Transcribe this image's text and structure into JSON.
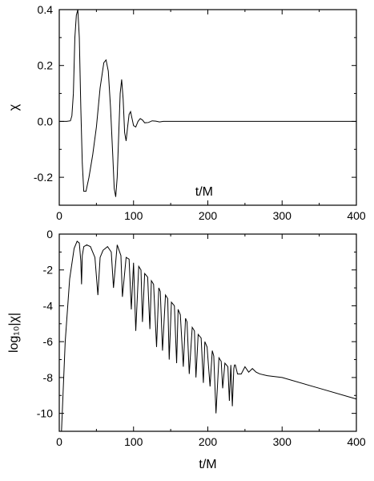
{
  "chart_data": [
    {
      "type": "line",
      "xlabel": "t/M",
      "ylabel": "χ",
      "xlim": [
        0,
        400
      ],
      "ylim": [
        -0.3,
        0.4
      ],
      "x_ticks": [
        0,
        100,
        200,
        300,
        400
      ],
      "x_tick_labels": [
        "0",
        "100",
        "200",
        "300",
        "400"
      ],
      "y_ticks": [
        -0.2,
        0.0,
        0.2,
        0.4
      ],
      "y_tick_labels": [
        "-0.2",
        "0.0",
        "0.2",
        "0.4"
      ],
      "grid": false,
      "series": [
        {
          "x": [
            0,
            10,
            15,
            17,
            19,
            21,
            23,
            25,
            27,
            29,
            31,
            33,
            36,
            40,
            45,
            50,
            55,
            60,
            63,
            66,
            69,
            72,
            74,
            76,
            78,
            80,
            82,
            84,
            86,
            88,
            90,
            92,
            94,
            96,
            98,
            100,
            103,
            106,
            109,
            112,
            115,
            120,
            125,
            130,
            135,
            140,
            150,
            160,
            200,
            300,
            400
          ],
          "y": [
            0,
            0,
            0.002,
            0.02,
            0.1,
            0.3,
            0.38,
            0.4,
            0.3,
            0.05,
            -0.15,
            -0.25,
            -0.25,
            -0.2,
            -0.12,
            -0.02,
            0.12,
            0.21,
            0.22,
            0.18,
            0.05,
            -0.12,
            -0.24,
            -0.27,
            -0.2,
            -0.05,
            0.1,
            0.15,
            0.08,
            -0.04,
            -0.07,
            -0.02,
            0.025,
            0.035,
            0.01,
            -0.015,
            -0.02,
            0.0,
            0.01,
            0.005,
            -0.005,
            -0.004,
            0.002,
            0.001,
            -0.002,
            0.0,
            0.0,
            0.0,
            0.0,
            0.0,
            0.0
          ]
        }
      ]
    },
    {
      "type": "line",
      "xlabel": "t/M",
      "ylabel": "log₁₀|χ|",
      "xlim": [
        0,
        400
      ],
      "ylim": [
        -11,
        0
      ],
      "x_ticks": [
        0,
        100,
        200,
        300,
        400
      ],
      "x_tick_labels": [
        "0",
        "100",
        "200",
        "300",
        "400"
      ],
      "y_ticks": [
        -10,
        -8,
        -6,
        -4,
        -2,
        0
      ],
      "y_tick_labels": [
        "-10",
        "-8",
        "-6",
        "-4",
        "-2",
        "0"
      ],
      "grid": false,
      "series": [
        {
          "x": [
            3,
            8,
            14,
            20,
            24,
            27,
            29,
            30,
            31,
            33,
            37,
            42,
            48,
            52,
            55,
            59,
            65,
            70,
            73,
            78,
            83,
            85,
            90,
            94,
            97,
            100,
            103,
            107,
            110,
            112,
            115,
            119,
            122,
            124,
            127,
            131,
            134,
            136,
            139,
            143,
            146,
            148,
            151,
            155,
            158,
            160,
            163,
            167,
            170,
            172,
            175,
            179,
            182,
            184,
            187,
            191,
            194,
            196,
            199,
            203,
            206,
            208,
            211,
            215,
            218,
            220,
            223,
            227,
            229,
            231,
            233,
            235,
            236,
            237,
            240,
            245,
            250,
            255,
            260,
            265,
            270,
            280,
            300,
            350,
            400
          ],
          "y": [
            -11,
            -6,
            -2.5,
            -0.8,
            -0.4,
            -0.5,
            -1.5,
            -2.8,
            -1.2,
            -0.7,
            -0.6,
            -0.7,
            -1.3,
            -3.4,
            -1.3,
            -0.9,
            -0.7,
            -1.0,
            -3.0,
            -0.6,
            -1.2,
            -3.5,
            -1.3,
            -1.4,
            -4.2,
            -1.6,
            -5.4,
            -1.8,
            -2.0,
            -4.9,
            -2.2,
            -2.4,
            -5.3,
            -2.6,
            -2.8,
            -6.3,
            -3.0,
            -3.2,
            -6.5,
            -3.4,
            -3.6,
            -7.0,
            -3.8,
            -4.0,
            -7.2,
            -4.2,
            -4.5,
            -7.4,
            -4.7,
            -4.9,
            -7.8,
            -5.2,
            -5.4,
            -8.0,
            -5.6,
            -5.8,
            -8.3,
            -6.0,
            -6.3,
            -8.5,
            -6.5,
            -6.8,
            -10.0,
            -6.9,
            -7.1,
            -8.6,
            -7.2,
            -7.4,
            -9.3,
            -7.3,
            -9.6,
            -7.5,
            -7.3,
            -7.3,
            -7.8,
            -7.8,
            -7.4,
            -7.7,
            -7.5,
            -7.7,
            -7.8,
            -7.9,
            -8.0,
            -8.6,
            -9.2
          ]
        }
      ]
    }
  ]
}
